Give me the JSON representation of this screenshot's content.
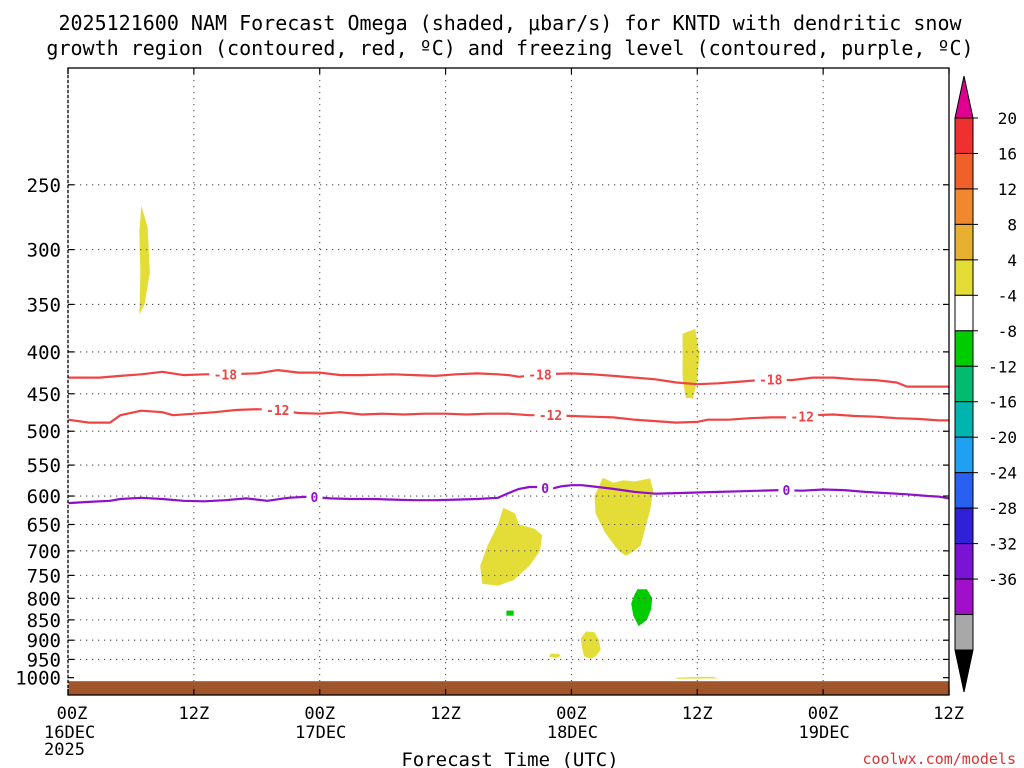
{
  "chart_data": {
    "type": "heatmap",
    "title_line1": "2025121600 NAM Forecast Omega (shaded, μbar/s) for KNTD with dendritic snow",
    "title_line2": "growth region (contoured, red, ºC) and freezing level (contoured, purple, ºC)",
    "xlabel": "Forecast Time (UTC)",
    "ylabel": "",
    "watermark": "coolwx.com/models",
    "x_range_hours": [
      0,
      84
    ],
    "y_range_hpa": [
      1050,
      180
    ],
    "y_scale": "log",
    "y_ticks": [
      250,
      300,
      350,
      400,
      450,
      500,
      550,
      600,
      650,
      700,
      750,
      800,
      850,
      900,
      950,
      1000
    ],
    "y_tick_labels": [
      "250",
      "300",
      "350",
      "400",
      "450",
      "500",
      "550",
      "600",
      "650",
      "700",
      "750",
      "800",
      "850",
      "900",
      "950",
      "1000"
    ],
    "x_ticks": [
      {
        "hour": 0,
        "line1": "00Z",
        "line2": "16DEC",
        "line3": "2025"
      },
      {
        "hour": 12,
        "line1": "12Z",
        "line2": "",
        "line3": ""
      },
      {
        "hour": 24,
        "line1": "00Z",
        "line2": "17DEC",
        "line3": ""
      },
      {
        "hour": 36,
        "line1": "12Z",
        "line2": "",
        "line3": ""
      },
      {
        "hour": 48,
        "line1": "00Z",
        "line2": "18DEC",
        "line3": ""
      },
      {
        "hour": 60,
        "line1": "12Z",
        "line2": "",
        "line3": ""
      },
      {
        "hour": 72,
        "line1": "00Z",
        "line2": "19DEC",
        "line3": ""
      },
      {
        "hour": 84,
        "line1": "12Z",
        "line2": "",
        "line3": ""
      }
    ],
    "grid": true,
    "contours": [
      {
        "name": "-18C isotherm",
        "label": "-18",
        "color": "#ee4444",
        "label_hours": [
          15,
          45,
          67
        ],
        "points": [
          [
            0,
            430
          ],
          [
            3,
            430
          ],
          [
            5,
            428
          ],
          [
            7,
            426
          ],
          [
            9,
            423
          ],
          [
            11,
            427
          ],
          [
            13,
            426
          ],
          [
            15,
            426
          ],
          [
            18,
            425
          ],
          [
            20,
            421
          ],
          [
            22,
            424
          ],
          [
            24,
            424
          ],
          [
            26,
            427
          ],
          [
            28,
            427
          ],
          [
            31,
            426
          ],
          [
            33,
            427
          ],
          [
            35,
            428
          ],
          [
            37,
            426
          ],
          [
            39,
            425
          ],
          [
            41,
            426
          ],
          [
            42,
            427
          ],
          [
            43,
            429
          ],
          [
            45,
            426
          ],
          [
            48,
            425
          ],
          [
            50,
            426
          ],
          [
            52,
            428
          ],
          [
            54,
            430
          ],
          [
            56,
            432
          ],
          [
            58,
            436
          ],
          [
            60,
            438
          ],
          [
            62,
            437
          ],
          [
            63,
            436
          ],
          [
            65,
            434
          ],
          [
            67,
            432
          ],
          [
            69,
            433
          ],
          [
            71,
            430
          ],
          [
            73,
            430
          ],
          [
            75,
            432
          ],
          [
            77,
            433
          ],
          [
            79,
            436
          ],
          [
            80,
            441
          ],
          [
            82,
            441
          ],
          [
            84,
            441
          ]
        ]
      },
      {
        "name": "-12C isotherm",
        "label": "-12",
        "color": "#ee4444",
        "label_hours": [
          20,
          46,
          70
        ],
        "points": [
          [
            0,
            484
          ],
          [
            2,
            488
          ],
          [
            4,
            488
          ],
          [
            5,
            478
          ],
          [
            7,
            472
          ],
          [
            9,
            474
          ],
          [
            10,
            478
          ],
          [
            12,
            476
          ],
          [
            14,
            474
          ],
          [
            16,
            471
          ],
          [
            18,
            470
          ],
          [
            20,
            471
          ],
          [
            22,
            475
          ],
          [
            24,
            476
          ],
          [
            26,
            474
          ],
          [
            28,
            477
          ],
          [
            30,
            476
          ],
          [
            32,
            477
          ],
          [
            34,
            476
          ],
          [
            36,
            476
          ],
          [
            38,
            477
          ],
          [
            40,
            476
          ],
          [
            42,
            476
          ],
          [
            44,
            478
          ],
          [
            46,
            478
          ],
          [
            48,
            479
          ],
          [
            50,
            480
          ],
          [
            52,
            481
          ],
          [
            54,
            484
          ],
          [
            56,
            486
          ],
          [
            58,
            488
          ],
          [
            60,
            487
          ],
          [
            61,
            484
          ],
          [
            63,
            484
          ],
          [
            65,
            482
          ],
          [
            67,
            481
          ],
          [
            69,
            481
          ],
          [
            71,
            478
          ],
          [
            73,
            477
          ],
          [
            75,
            479
          ],
          [
            77,
            480
          ],
          [
            79,
            482
          ],
          [
            81,
            483
          ],
          [
            83,
            485
          ],
          [
            84,
            485
          ]
        ]
      },
      {
        "name": "0C freezing level",
        "label": "0",
        "color": "#8e10c8",
        "label_hours": [
          23.5,
          45.5,
          68.5
        ],
        "points": [
          [
            0,
            612
          ],
          [
            2,
            610
          ],
          [
            4,
            608
          ],
          [
            5,
            605
          ],
          [
            7,
            603
          ],
          [
            9,
            605
          ],
          [
            11,
            608
          ],
          [
            13,
            609
          ],
          [
            15,
            607
          ],
          [
            17,
            604
          ],
          [
            19,
            608
          ],
          [
            21,
            603
          ],
          [
            23,
            601
          ],
          [
            25,
            604
          ],
          [
            27,
            605
          ],
          [
            29,
            605
          ],
          [
            31,
            606
          ],
          [
            33,
            607
          ],
          [
            35,
            607
          ],
          [
            37,
            606
          ],
          [
            39,
            605
          ],
          [
            41,
            603
          ],
          [
            42,
            595
          ],
          [
            43,
            588
          ],
          [
            44,
            585
          ],
          [
            45,
            585
          ],
          [
            46,
            588
          ],
          [
            47,
            584
          ],
          [
            48,
            582
          ],
          [
            49,
            582
          ],
          [
            50,
            584
          ],
          [
            52,
            588
          ],
          [
            54,
            593
          ],
          [
            56,
            596
          ],
          [
            58,
            595
          ],
          [
            60,
            594
          ],
          [
            62,
            593
          ],
          [
            64,
            592
          ],
          [
            66,
            591
          ],
          [
            68,
            590
          ],
          [
            70,
            591
          ],
          [
            72,
            589
          ],
          [
            74,
            590
          ],
          [
            76,
            593
          ],
          [
            78,
            595
          ],
          [
            80,
            597
          ],
          [
            82,
            600
          ],
          [
            83,
            601
          ],
          [
            84,
            604
          ]
        ]
      }
    ],
    "shaded_regions": [
      {
        "category": "omega 4 to 8",
        "color": "#e4dd38",
        "points": [
          [
            7,
            265
          ],
          [
            7.6,
            282
          ],
          [
            7.8,
            320
          ],
          [
            7.3,
            350
          ],
          [
            6.8,
            360
          ],
          [
            6.9,
            320
          ],
          [
            6.8,
            285
          ]
        ]
      },
      {
        "category": "omega 4 to 8",
        "color": "#e4dd38",
        "points": [
          [
            58.6,
            380
          ],
          [
            59.8,
            375
          ],
          [
            60.2,
            402
          ],
          [
            60.0,
            432
          ],
          [
            59.6,
            456
          ],
          [
            58.9,
            455
          ],
          [
            58.6,
            430
          ]
        ]
      },
      {
        "category": "omega 4 to 8",
        "color": "#e4dd38",
        "points": [
          [
            41.5,
            620
          ],
          [
            42.6,
            630
          ],
          [
            43,
            650
          ],
          [
            44.5,
            658
          ],
          [
            45.2,
            670
          ],
          [
            45,
            700
          ],
          [
            44,
            730
          ],
          [
            42.5,
            760
          ],
          [
            41,
            772
          ],
          [
            39.5,
            768
          ],
          [
            39.3,
            730
          ],
          [
            40,
            690
          ],
          [
            41,
            650
          ]
        ]
      },
      {
        "category": "omega 4 to 8",
        "color": "#e4dd38",
        "points": [
          [
            51,
            570
          ],
          [
            52,
            578
          ],
          [
            53,
            574
          ],
          [
            54,
            576
          ],
          [
            55.5,
            571
          ],
          [
            55.8,
            590
          ],
          [
            55.5,
            625
          ],
          [
            55,
            660
          ],
          [
            54.6,
            690
          ],
          [
            54,
            700
          ],
          [
            53.2,
            710
          ],
          [
            52.5,
            700
          ],
          [
            51.2,
            665
          ],
          [
            50.3,
            630
          ],
          [
            50.2,
            600
          ]
        ]
      },
      {
        "category": "omega 4 to 8",
        "color": "#e4dd38",
        "points": [
          [
            49.4,
            878
          ],
          [
            50.2,
            880
          ],
          [
            50.6,
            898
          ],
          [
            50.8,
            925
          ],
          [
            50.3,
            942
          ],
          [
            49.8,
            948
          ],
          [
            49.2,
            942
          ],
          [
            49.0,
            918
          ],
          [
            48.9,
            895
          ]
        ]
      },
      {
        "category": "omega 4 to 8",
        "color": "#e4dd38",
        "points": [
          [
            46.0,
            935
          ],
          [
            46.8,
            935
          ],
          [
            47.0,
            942
          ],
          [
            46.4,
            946
          ],
          [
            45.9,
            943
          ]
        ]
      },
      {
        "category": "omega 4 to 8",
        "color": "#e4dd38",
        "points": [
          [
            58.0,
            1000
          ],
          [
            60.0,
            998
          ],
          [
            61.5,
            998
          ],
          [
            62.0,
            1002
          ],
          [
            58.0,
            1003
          ]
        ]
      },
      {
        "category": "omega -8 to -4",
        "color": "#00cc00",
        "points": [
          [
            54.3,
            780
          ],
          [
            55.2,
            780
          ],
          [
            55.7,
            800
          ],
          [
            55.6,
            825
          ],
          [
            55.2,
            850
          ],
          [
            54.4,
            865
          ],
          [
            53.9,
            840
          ],
          [
            53.7,
            812
          ],
          [
            54.0,
            792
          ]
        ]
      },
      {
        "category": "omega -8 to -4",
        "color": "#00cc00",
        "points": [
          [
            41.8,
            828
          ],
          [
            42.5,
            828
          ],
          [
            42.5,
            840
          ],
          [
            41.8,
            840
          ]
        ]
      }
    ],
    "terrain": {
      "label": "below-ground",
      "color": "#a0552a",
      "top_hpa": 1010
    },
    "colorbar": {
      "labels": [
        "20",
        "16",
        "12",
        "8",
        "4",
        "-4",
        "-8",
        "-12",
        "-16",
        "-20",
        "-24",
        "-28",
        "-32",
        "-36"
      ],
      "segments": [
        {
          "color": "#e00090",
          "shape": "triangle-up"
        },
        {
          "color": "#f03030"
        },
        {
          "color": "#f0602a"
        },
        {
          "color": "#f08830"
        },
        {
          "color": "#e8b030"
        },
        {
          "color": "#e4dd38"
        },
        {
          "color": "#ffffff"
        },
        {
          "color": "#00cc00"
        },
        {
          "color": "#00bb70"
        },
        {
          "color": "#00b4b0"
        },
        {
          "color": "#20a0f0"
        },
        {
          "color": "#2a60f0"
        },
        {
          "color": "#3020d8"
        },
        {
          "color": "#7a14d4"
        },
        {
          "color": "#a010c8"
        },
        {
          "color": "#a8a8a8"
        },
        {
          "color": "#000000",
          "shape": "triangle-down"
        }
      ]
    }
  }
}
